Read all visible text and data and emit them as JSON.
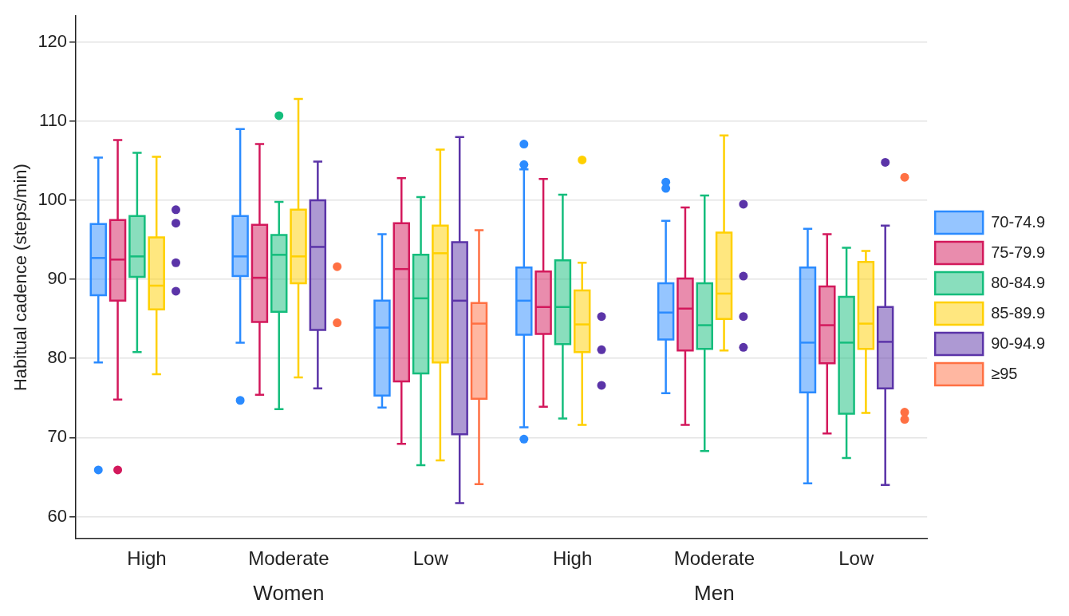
{
  "chart_data": {
    "type": "box",
    "ylabel": "Habitual cadence (steps/min)",
    "categories": [
      "High",
      "Moderate",
      "Low",
      "High",
      "Moderate",
      "Low"
    ],
    "annotations": [
      "Women",
      "Men"
    ],
    "ylim": [
      57.2,
      123.3
    ],
    "yticks": [
      60,
      70,
      80,
      90,
      100,
      110,
      120
    ],
    "grid": "y",
    "legend": "right",
    "series": [
      {
        "name": "70-74.9",
        "color": "#2b8bff",
        "boxes": [
          {
            "low": 79.5,
            "q1": 88,
            "median": 92.7,
            "q3": 97,
            "high": 105.4,
            "outliers": [
              65.9
            ]
          },
          {
            "low": 82,
            "q1": 90.4,
            "median": 92.9,
            "q3": 98,
            "high": 109,
            "outliers": [
              74.7
            ]
          },
          {
            "low": 73.8,
            "q1": 75.3,
            "median": 83.9,
            "q3": 87.3,
            "high": 95.7
          },
          {
            "low": 71.3,
            "q1": 83,
            "median": 87.3,
            "q3": 91.5,
            "high": 103.9,
            "outliers": [
              107.1,
              104.5,
              69.8
            ]
          },
          {
            "low": 75.6,
            "q1": 82.4,
            "median": 85.8,
            "q3": 89.5,
            "high": 97.4,
            "outliers": [
              102.3,
              101.5
            ]
          },
          {
            "low": 64.2,
            "q1": 75.7,
            "median": 82,
            "q3": 91.5,
            "high": 96.4
          }
        ]
      },
      {
        "name": "75-79.9",
        "color": "#d3195c",
        "boxes": [
          {
            "low": 74.8,
            "q1": 87.3,
            "median": 92.5,
            "q3": 97.5,
            "high": 107.6,
            "outliers": [
              65.9
            ]
          },
          {
            "low": 75.4,
            "q1": 84.6,
            "median": 90.2,
            "q3": 96.9,
            "high": 107.1
          },
          {
            "low": 69.2,
            "q1": 77.1,
            "median": 91.3,
            "q3": 97.1,
            "high": 102.8
          },
          {
            "low": 73.9,
            "q1": 83.1,
            "median": 86.5,
            "q3": 91,
            "high": 102.7
          },
          {
            "low": 71.6,
            "q1": 81,
            "median": 86.3,
            "q3": 90.1,
            "high": 99.1
          },
          {
            "low": 70.5,
            "q1": 79.4,
            "median": 84.2,
            "q3": 89.1,
            "high": 95.7
          }
        ]
      },
      {
        "name": "80-84.9",
        "color": "#14bd7c",
        "boxes": [
          {
            "low": 80.8,
            "q1": 90.3,
            "median": 92.9,
            "q3": 98,
            "high": 106
          },
          {
            "low": 73.6,
            "q1": 85.9,
            "median": 93.1,
            "q3": 95.6,
            "high": 99.8,
            "outliers": [
              110.7
            ]
          },
          {
            "low": 66.5,
            "q1": 78.1,
            "median": 87.6,
            "q3": 93.1,
            "high": 100.4
          },
          {
            "low": 72.4,
            "q1": 81.8,
            "median": 86.5,
            "q3": 92.4,
            "high": 100.7
          },
          {
            "low": 68.3,
            "q1": 81.2,
            "median": 84.2,
            "q3": 89.5,
            "high": 100.6
          },
          {
            "low": 67.4,
            "q1": 73,
            "median": 82,
            "q3": 87.8,
            "high": 94
          }
        ]
      },
      {
        "name": "85-89.9",
        "color": "#ffd000",
        "boxes": [
          {
            "low": 78,
            "q1": 86.2,
            "median": 89.2,
            "q3": 95.3,
            "high": 105.5
          },
          {
            "low": 77.6,
            "q1": 89.5,
            "median": 92.9,
            "q3": 98.8,
            "high": 112.8
          },
          {
            "low": 67.1,
            "q1": 79.5,
            "median": 93.3,
            "q3": 96.8,
            "high": 106.4
          },
          {
            "low": 71.6,
            "q1": 80.8,
            "median": 84.3,
            "q3": 88.6,
            "high": 92.1,
            "outliers": [
              105.1
            ]
          },
          {
            "low": 81,
            "q1": 85,
            "median": 88.2,
            "q3": 95.9,
            "high": 108.2
          },
          {
            "low": 73.1,
            "q1": 81.2,
            "median": 84.4,
            "q3": 92.2,
            "high": 93.6
          }
        ]
      },
      {
        "name": "90-94.9",
        "color": "#5b34a8",
        "boxes": [
          null,
          {
            "low": 76.2,
            "q1": 83.6,
            "median": 94.1,
            "q3": 100,
            "high": 104.9
          },
          {
            "low": 61.7,
            "q1": 70.4,
            "median": 87.3,
            "q3": 94.7,
            "high": 108
          },
          null,
          null,
          {
            "low": 64,
            "q1": 76.2,
            "median": 82.1,
            "q3": 86.5,
            "high": 96.8,
            "outliers": [
              104.8
            ]
          }
        ]
      },
      {
        "name": "≥95",
        "color": "#ff7043",
        "boxes": [
          null,
          null,
          {
            "low": 64.1,
            "q1": 74.9,
            "median": 84.4,
            "q3": 87,
            "high": 96.2
          },
          null,
          null,
          null
        ]
      },
      {
        "type": "scatter",
        "color": "#5b34a8",
        "values": [
          98.8,
          null,
          null,
          85.3,
          99.5,
          null
        ]
      },
      {
        "type": "scatter",
        "color": "#5b34a8",
        "values": [
          97.1,
          null,
          null,
          81.1,
          90.4,
          null
        ]
      },
      {
        "type": "scatter",
        "color": "#5b34a8",
        "values": [
          92.1,
          null,
          null,
          76.6,
          85.3,
          null
        ]
      },
      {
        "type": "scatter",
        "color": "#5b34a8",
        "values": [
          88.5,
          null,
          null,
          null,
          81.4,
          null
        ]
      },
      {
        "type": "scatter",
        "color": "#ff7043",
        "values": [
          null,
          91.6,
          null,
          null,
          null,
          102.9
        ]
      },
      {
        "type": "scatter",
        "color": "#ff7043",
        "values": [
          null,
          84.5,
          null,
          null,
          null,
          73.2
        ]
      },
      {
        "type": "scatter",
        "color": "#ff7043",
        "values": [
          null,
          null,
          null,
          null,
          null,
          72.3
        ]
      }
    ]
  }
}
